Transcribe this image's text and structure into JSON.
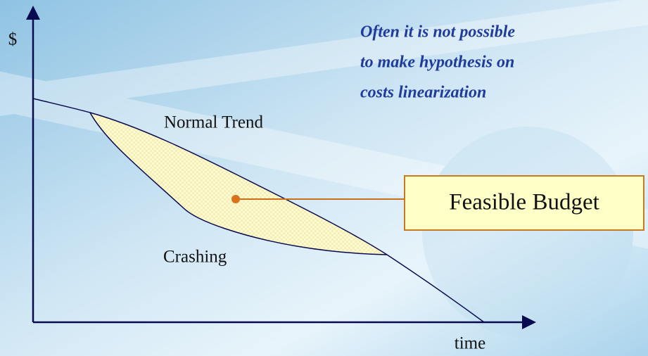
{
  "y_axis_label": "$",
  "x_axis_label": "time",
  "note": [
    "Often it is not possible",
    "to make hypothesis on",
    "costs linearization"
  ],
  "curves": {
    "normal": "Normal Trend",
    "crashing": "Crashing"
  },
  "callout": "Feasible Budget"
}
